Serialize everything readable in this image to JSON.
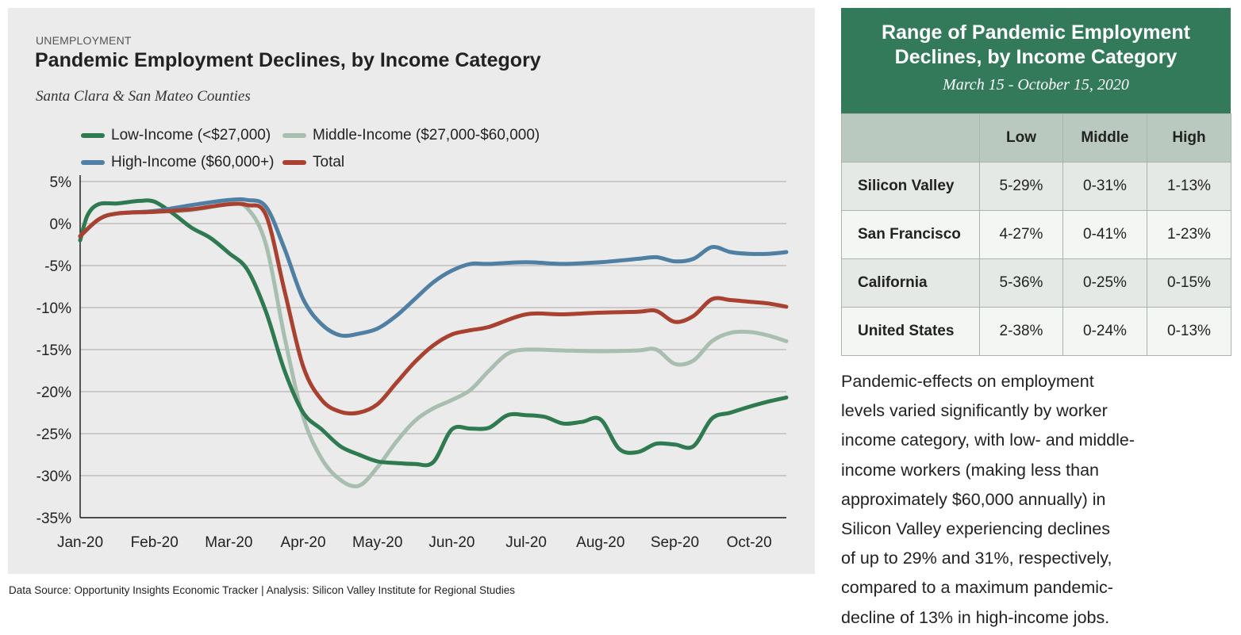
{
  "chart_data": {
    "type": "line",
    "kicker": "UNEMPLOYMENT",
    "title": "Pandemic Employment Declines, by Income Category",
    "subtitle": "Santa Clara & San Mateo Counties",
    "xlabel": "",
    "ylabel": "",
    "x_ticks": [
      "Jan-20",
      "Feb-20",
      "Mar-20",
      "Apr-20",
      "May-20",
      "Jun-20",
      "Jul-20",
      "Aug-20",
      "Sep-20",
      "Oct-20"
    ],
    "y_ticks": [
      "5%",
      "0%",
      "-5%",
      "-10%",
      "-15%",
      "-20%",
      "-25%",
      "-30%",
      "-35%"
    ],
    "ylim": [
      -35,
      5
    ],
    "xlim": [
      0,
      9.5
    ],
    "grid": true,
    "legend_position": "top-left",
    "series": [
      {
        "name": "Low-Income (<$27,000)",
        "color": "#2f7a50",
        "x": [
          0,
          0.1,
          0.25,
          0.5,
          0.8,
          1.0,
          1.25,
          1.5,
          1.75,
          2.0,
          2.25,
          2.5,
          2.75,
          3.0,
          3.25,
          3.5,
          3.75,
          4.0,
          4.25,
          4.5,
          4.75,
          5.0,
          5.25,
          5.5,
          5.75,
          6.0,
          6.25,
          6.5,
          6.75,
          7.0,
          7.25,
          7.5,
          7.75,
          8.0,
          8.25,
          8.5,
          8.75,
          9.0,
          9.25,
          9.5
        ],
        "y": [
          -2,
          1,
          2.3,
          2.4,
          2.7,
          2.6,
          1.2,
          -0.5,
          -1.7,
          -3.5,
          -5.5,
          -10.5,
          -17.5,
          -22.5,
          -24.5,
          -26.5,
          -27.5,
          -28.3,
          -28.5,
          -28.6,
          -28.4,
          -24.5,
          -24.4,
          -24.3,
          -22.8,
          -22.8,
          -23.0,
          -23.8,
          -23.6,
          -23.3,
          -26.8,
          -27.2,
          -26.2,
          -26.3,
          -26.5,
          -23.2,
          -22.5,
          -21.8,
          -21.2,
          -20.7
        ]
      },
      {
        "name": "Middle-Income ($27,000-$60,000)",
        "color": "#a8bfb0",
        "x": [
          0,
          0.25,
          0.5,
          1.0,
          1.5,
          2.0,
          2.25,
          2.5,
          2.75,
          3.0,
          3.25,
          3.5,
          3.75,
          4.0,
          4.25,
          4.5,
          4.75,
          5.0,
          5.25,
          5.5,
          5.75,
          6.0,
          6.5,
          7.0,
          7.5,
          7.75,
          8.0,
          8.25,
          8.5,
          8.75,
          9.0,
          9.25,
          9.5
        ],
        "y": [
          -1.5,
          0.5,
          1.2,
          1.4,
          1.6,
          2.3,
          1.8,
          -2.5,
          -13.5,
          -23,
          -28,
          -30.5,
          -31.2,
          -29,
          -26,
          -23.5,
          -22,
          -21,
          -19.8,
          -17.5,
          -15.5,
          -15,
          -15.1,
          -15.2,
          -15.1,
          -15,
          -16.7,
          -16.3,
          -14.0,
          -13.0,
          -12.9,
          -13.3,
          -14.0
        ]
      },
      {
        "name": "High-Income ($60,000+)",
        "color": "#4f7fa3",
        "x": [
          0,
          0.25,
          0.5,
          1.0,
          1.5,
          2.0,
          2.25,
          2.5,
          2.75,
          3.0,
          3.25,
          3.5,
          3.75,
          4.0,
          4.25,
          4.5,
          4.75,
          5.0,
          5.25,
          5.5,
          6.0,
          6.5,
          7.0,
          7.5,
          7.75,
          8.0,
          8.25,
          8.5,
          8.75,
          9.0,
          9.25,
          9.5
        ],
        "y": [
          -1.5,
          0.5,
          1.2,
          1.5,
          2.2,
          2.8,
          2.8,
          2.0,
          -3,
          -9,
          -12,
          -13.3,
          -13.1,
          -12.5,
          -11,
          -9,
          -7,
          -5.6,
          -4.8,
          -4.8,
          -4.6,
          -4.8,
          -4.6,
          -4.2,
          -4.0,
          -4.5,
          -4.2,
          -2.8,
          -3.4,
          -3.6,
          -3.6,
          -3.4
        ]
      },
      {
        "name": "Total",
        "color": "#a8412f",
        "x": [
          0,
          0.25,
          0.5,
          1.0,
          1.5,
          2.0,
          2.25,
          2.5,
          2.75,
          3.0,
          3.25,
          3.5,
          3.75,
          4.0,
          4.25,
          4.5,
          4.75,
          5.0,
          5.25,
          5.5,
          6.0,
          6.5,
          7.0,
          7.5,
          7.75,
          8.0,
          8.25,
          8.5,
          8.75,
          9.0,
          9.25,
          9.5
        ],
        "y": [
          -1.5,
          0.5,
          1.2,
          1.4,
          1.7,
          2.3,
          2.2,
          1.0,
          -8,
          -17,
          -21,
          -22.4,
          -22.5,
          -21.5,
          -19,
          -16.5,
          -14.5,
          -13.2,
          -12.7,
          -12.3,
          -10.8,
          -10.8,
          -10.6,
          -10.5,
          -10.4,
          -11.7,
          -11.0,
          -9.0,
          -9.1,
          -9.3,
          -9.5,
          -9.9
        ]
      }
    ]
  },
  "source_note": "Data Source: Opportunity Insights Economic Tracker  |  Analysis: Silicon Valley Institute for Regional Studies",
  "range_table": {
    "title_line1": "Range of Pandemic Employment",
    "title_line2": "Declines, by Income Category",
    "subtitle": "March 15 - October 15, 2020",
    "columns": [
      "",
      "Low",
      "Middle",
      "High"
    ],
    "rows": [
      {
        "region": "Silicon Valley",
        "low": "5-29%",
        "middle": "0-31%",
        "high": "1-13%"
      },
      {
        "region": "San Francisco",
        "low": "4-27%",
        "middle": "0-41%",
        "high": "1-23%"
      },
      {
        "region": "California",
        "low": "5-36%",
        "middle": "0-25%",
        "high": "0-15%"
      },
      {
        "region": "United States",
        "low": "2-38%",
        "middle": "0-24%",
        "high": "0-13%"
      }
    ]
  },
  "description": {
    "lines": [
      "Pandemic-effects on employment",
      "levels varied significantly by worker",
      "income category, with low- and middle-",
      "income workers (making less than",
      "approximately $60,000 annually) in",
      "Silicon Valley experiencing declines",
      "of up to 29% and 31%, respectively,",
      "compared to a maximum pandemic-",
      "decline of 13% in high-income jobs."
    ]
  }
}
